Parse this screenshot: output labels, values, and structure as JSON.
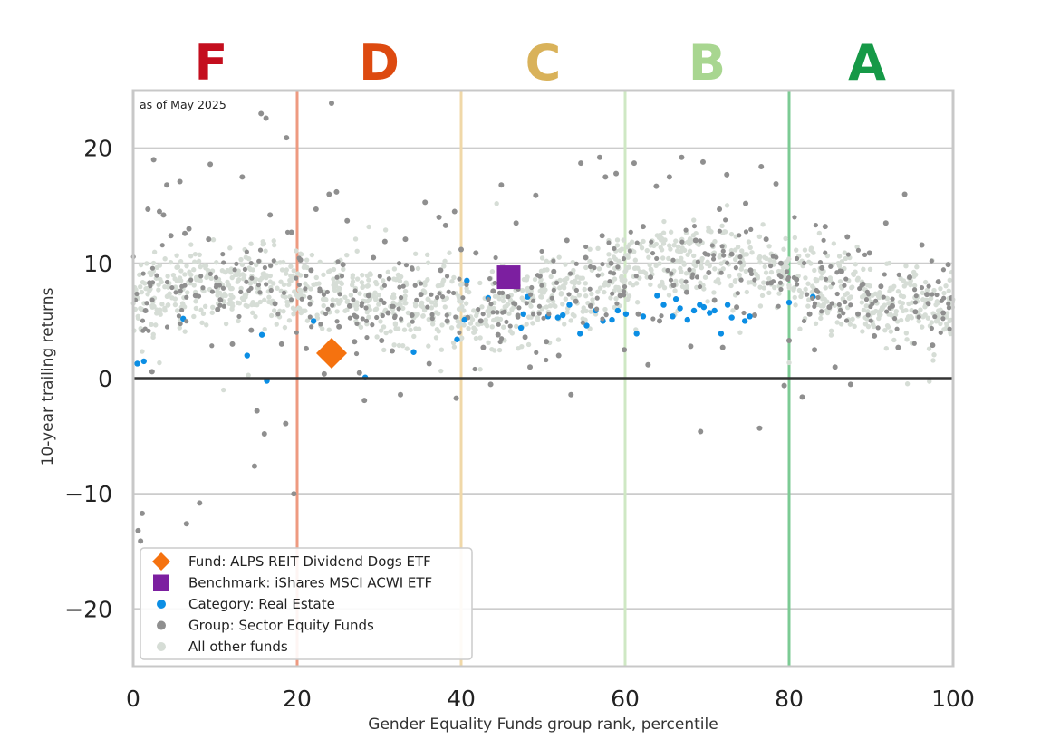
{
  "chart_data": {
    "type": "scatter",
    "title": "",
    "note": "as of May 2025",
    "xlabel": "Gender Equality Funds group rank, percentile",
    "ylabel": "10-year trailing returns",
    "xlim": [
      0,
      100
    ],
    "ylim": [
      -25,
      25
    ],
    "xticks": [
      0,
      20,
      40,
      60,
      80,
      100
    ],
    "xtick_labels": [
      "0",
      "20",
      "40",
      "60",
      "80",
      "100"
    ],
    "yticks": [
      20,
      10,
      0,
      -10,
      -20
    ],
    "ytick_labels": [
      "20",
      "10",
      "0",
      "−10",
      "−20"
    ],
    "grid": "horizontal",
    "zero_line": 0,
    "grade_bands": [
      {
        "label": "F",
        "center": 9.5,
        "color": "#c40e1e",
        "line_x": 20,
        "line_color": "#ee9a80"
      },
      {
        "label": "D",
        "center": 30,
        "color": "#dd4a10",
        "line_x": 40,
        "line_color": "#f0d8a8"
      },
      {
        "label": "C",
        "center": 50,
        "color": "#d9b25a",
        "line_x": 60,
        "line_color": "#cfe8c4"
      },
      {
        "label": "B",
        "center": 70,
        "color": "#a8d690",
        "line_x": 80,
        "line_color": "#7ccb94"
      },
      {
        "label": "A",
        "center": 89.5,
        "color": "#169947",
        "line_x": 100,
        "line_color": "#9fd8ad"
      }
    ],
    "series": [
      {
        "name": "All other funds",
        "role": "all",
        "color": "#d6ddd6",
        "marker": "circle",
        "description": "dense cloud of several thousand funds spanning x 0-100, mostly between y 2 and 14",
        "sample_count": 1400
      },
      {
        "name": "Group: Sector Equity Funds",
        "role": "group",
        "color": "#8f8f8f",
        "marker": "circle",
        "points": [
          [
            0.6,
            -13.2
          ],
          [
            0.9,
            -14.1
          ],
          [
            1.1,
            -11.7
          ],
          [
            2.3,
            0.6
          ],
          [
            1.5,
            5.9
          ],
          [
            2.0,
            8.3
          ],
          [
            1.8,
            14.7
          ],
          [
            2.5,
            19.0
          ],
          [
            3.2,
            14.5
          ],
          [
            3.7,
            14.2
          ],
          [
            4.1,
            16.8
          ],
          [
            4.6,
            12.4
          ],
          [
            5.7,
            17.1
          ],
          [
            6.3,
            12.6
          ],
          [
            6.8,
            13.0
          ],
          [
            6.5,
            -12.6
          ],
          [
            8.1,
            -10.8
          ],
          [
            7.6,
            7.2
          ],
          [
            9.4,
            18.6
          ],
          [
            9.2,
            12.1
          ],
          [
            10.3,
            6.0
          ],
          [
            12.1,
            3.0
          ],
          [
            13.3,
            17.5
          ],
          [
            14.4,
            4.2
          ],
          [
            14.8,
            -7.6
          ],
          [
            15.1,
            -2.8
          ],
          [
            15.6,
            23.0
          ],
          [
            16.2,
            22.6
          ],
          [
            16.0,
            -4.8
          ],
          [
            16.7,
            14.2
          ],
          [
            17.3,
            6.5
          ],
          [
            18.1,
            3.0
          ],
          [
            18.6,
            -3.9
          ],
          [
            18.7,
            20.9
          ],
          [
            19.3,
            12.7
          ],
          [
            19.6,
            -10.0
          ],
          [
            20.4,
            10.3
          ],
          [
            21.1,
            2.6
          ],
          [
            21.7,
            9.4
          ],
          [
            22.3,
            14.7
          ],
          [
            22.8,
            7.6
          ],
          [
            23.3,
            0.4
          ],
          [
            23.9,
            16.0
          ],
          [
            24.2,
            23.9
          ],
          [
            24.8,
            16.2
          ],
          [
            25.1,
            4.5
          ],
          [
            25.6,
            9.9
          ],
          [
            26.1,
            13.7
          ],
          [
            26.4,
            6.3
          ],
          [
            27.0,
            3.2
          ],
          [
            27.6,
            0.5
          ],
          [
            28.2,
            -1.9
          ],
          [
            28.7,
            7.2
          ],
          [
            29.3,
            10.5
          ],
          [
            30.3,
            3.3
          ],
          [
            30.7,
            11.9
          ],
          [
            31.1,
            5.7
          ],
          [
            31.6,
            2.4
          ],
          [
            32.6,
            -1.4
          ],
          [
            33.2,
            12.1
          ],
          [
            34.0,
            5.5
          ],
          [
            35.1,
            7.3
          ],
          [
            35.6,
            15.3
          ],
          [
            36.1,
            1.3
          ],
          [
            37.3,
            14.0
          ],
          [
            37.5,
            9.4
          ],
          [
            38.1,
            13.3
          ],
          [
            38.3,
            5.0
          ],
          [
            39.2,
            14.5
          ],
          [
            39.4,
            -1.7
          ],
          [
            40.0,
            11.2
          ],
          [
            40.8,
            5.3
          ],
          [
            41.8,
            10.9
          ],
          [
            42.4,
            5.0
          ],
          [
            42.7,
            2.7
          ],
          [
            43.6,
            -0.5
          ],
          [
            43.9,
            7.6
          ],
          [
            44.5,
            3.8
          ],
          [
            44.9,
            16.8
          ],
          [
            46.7,
            13.5
          ],
          [
            46.9,
            9.4
          ],
          [
            47.8,
            3.6
          ],
          [
            48.4,
            1.0
          ],
          [
            49.1,
            15.9
          ],
          [
            49.6,
            8.9
          ],
          [
            50.4,
            3.2
          ],
          [
            51.3,
            9.3
          ],
          [
            51.9,
            2.0
          ],
          [
            52.9,
            12.0
          ],
          [
            53.4,
            -1.4
          ],
          [
            54.0,
            6.7
          ],
          [
            54.6,
            18.7
          ],
          [
            55.2,
            10.5
          ],
          [
            55.8,
            6.3
          ],
          [
            56.9,
            19.2
          ],
          [
            57.2,
            12.4
          ],
          [
            57.6,
            17.5
          ],
          [
            58.3,
            10.0
          ],
          [
            58.9,
            17.8
          ],
          [
            59.4,
            7.2
          ],
          [
            59.9,
            2.5
          ],
          [
            61.1,
            18.7
          ],
          [
            61.6,
            5.6
          ],
          [
            62.2,
            13.2
          ],
          [
            62.8,
            1.2
          ],
          [
            63.1,
            8.8
          ],
          [
            63.8,
            16.7
          ],
          [
            64.2,
            5.0
          ],
          [
            65.4,
            17.5
          ],
          [
            65.9,
            8.1
          ],
          [
            66.9,
            19.2
          ],
          [
            67.5,
            7.5
          ],
          [
            68.0,
            2.8
          ],
          [
            68.6,
            12.0
          ],
          [
            69.2,
            -4.6
          ],
          [
            69.5,
            18.8
          ],
          [
            70.2,
            9.2
          ],
          [
            70.9,
            6.8
          ],
          [
            71.5,
            14.7
          ],
          [
            71.9,
            2.7
          ],
          [
            72.4,
            17.7
          ],
          [
            73.0,
            10.8
          ],
          [
            73.6,
            6.2
          ],
          [
            74.7,
            15.2
          ],
          [
            75.3,
            9.4
          ],
          [
            75.8,
            5.5
          ],
          [
            76.4,
            -4.3
          ],
          [
            76.6,
            18.4
          ],
          [
            77.2,
            12.1
          ],
          [
            77.8,
            8.3
          ],
          [
            78.4,
            16.9
          ],
          [
            79.0,
            10.0
          ],
          [
            79.4,
            -0.6
          ],
          [
            80.0,
            3.3
          ],
          [
            80.9,
            8.6
          ],
          [
            81.6,
            -1.6
          ],
          [
            82.5,
            5.6
          ],
          [
            83.1,
            2.5
          ],
          [
            84.0,
            9.6
          ],
          [
            84.4,
            13.2
          ],
          [
            84.9,
            6.2
          ],
          [
            85.6,
            1.0
          ],
          [
            86.4,
            9.3
          ],
          [
            87.1,
            12.3
          ],
          [
            87.5,
            -0.5
          ],
          [
            88.4,
            5.6
          ],
          [
            89.0,
            8.2
          ],
          [
            89.8,
            10.9
          ],
          [
            90.4,
            3.7
          ],
          [
            91.2,
            8.0
          ],
          [
            91.8,
            13.5
          ],
          [
            92.6,
            6.3
          ],
          [
            93.3,
            2.7
          ],
          [
            94.1,
            16.0
          ],
          [
            94.7,
            8.8
          ],
          [
            95.4,
            5.8
          ],
          [
            96.2,
            11.6
          ],
          [
            96.8,
            7.3
          ],
          [
            97.5,
            2.9
          ],
          [
            98.2,
            8.4
          ],
          [
            98.8,
            5.7
          ],
          [
            99.4,
            9.9
          ],
          [
            99.8,
            7.0
          ]
        ]
      },
      {
        "name": "Category: Real Estate",
        "role": "category",
        "color": "#0b8ee4",
        "marker": "circle",
        "points": [
          [
            0.5,
            1.3
          ],
          [
            1.3,
            1.5
          ],
          [
            6.1,
            5.2
          ],
          [
            13.9,
            2.0
          ],
          [
            15.7,
            3.8
          ],
          [
            16.3,
            -0.2
          ],
          [
            22.0,
            5.0
          ],
          [
            28.3,
            0.1
          ],
          [
            34.2,
            2.3
          ],
          [
            39.5,
            3.4
          ],
          [
            40.4,
            5.1
          ],
          [
            40.7,
            8.5
          ],
          [
            43.3,
            7.0
          ],
          [
            47.3,
            4.4
          ],
          [
            47.6,
            5.6
          ],
          [
            48.1,
            7.1
          ],
          [
            50.6,
            5.4
          ],
          [
            51.8,
            5.3
          ],
          [
            52.4,
            5.5
          ],
          [
            53.2,
            6.4
          ],
          [
            54.5,
            3.9
          ],
          [
            55.3,
            4.6
          ],
          [
            56.4,
            5.9
          ],
          [
            57.3,
            5.0
          ],
          [
            58.4,
            5.1
          ],
          [
            59.1,
            5.9
          ],
          [
            60.1,
            5.6
          ],
          [
            61.4,
            3.9
          ],
          [
            62.2,
            5.4
          ],
          [
            63.9,
            7.2
          ],
          [
            64.7,
            6.4
          ],
          [
            65.8,
            5.4
          ],
          [
            66.2,
            6.9
          ],
          [
            66.7,
            6.1
          ],
          [
            67.6,
            5.1
          ],
          [
            68.4,
            5.9
          ],
          [
            69.1,
            6.4
          ],
          [
            69.6,
            6.2
          ],
          [
            70.3,
            5.7
          ],
          [
            70.9,
            5.9
          ],
          [
            71.7,
            3.9
          ],
          [
            72.5,
            6.4
          ],
          [
            73.0,
            5.3
          ],
          [
            74.6,
            5.0
          ],
          [
            75.2,
            5.4
          ],
          [
            80.0,
            6.6
          ],
          [
            82.9,
            7.1
          ]
        ]
      },
      {
        "name": "Group: Sector Equity Funds (dark cloud)",
        "role": "group-fill",
        "color": "#8f8f8f",
        "marker": "circle",
        "sample_count": 360
      },
      {
        "name": "Benchmark: iShares MSCI ACWI ETF",
        "role": "benchmark",
        "color": "#7c1fa0",
        "marker": "square",
        "points": [
          [
            45.8,
            8.8
          ]
        ]
      },
      {
        "name": "Fund: ALPS REIT Dividend Dogs ETF",
        "role": "fund",
        "color": "#f5720f",
        "marker": "diamond",
        "points": [
          [
            24.2,
            2.2
          ]
        ]
      }
    ],
    "legend": {
      "placement": "lower-left",
      "entries": [
        {
          "label": "Fund: ALPS REIT Dividend Dogs ETF",
          "marker": "diamond",
          "color": "#f5720f"
        },
        {
          "label": "Benchmark: iShares MSCI ACWI ETF",
          "marker": "square",
          "color": "#7c1fa0"
        },
        {
          "label": "Category: Real Estate",
          "marker": "circle",
          "color": "#0b8ee4"
        },
        {
          "label": "Group: Sector Equity Funds",
          "marker": "circle",
          "color": "#8f8f8f"
        },
        {
          "label": "All other funds",
          "marker": "circle",
          "color": "#d6ddd6"
        }
      ]
    }
  }
}
